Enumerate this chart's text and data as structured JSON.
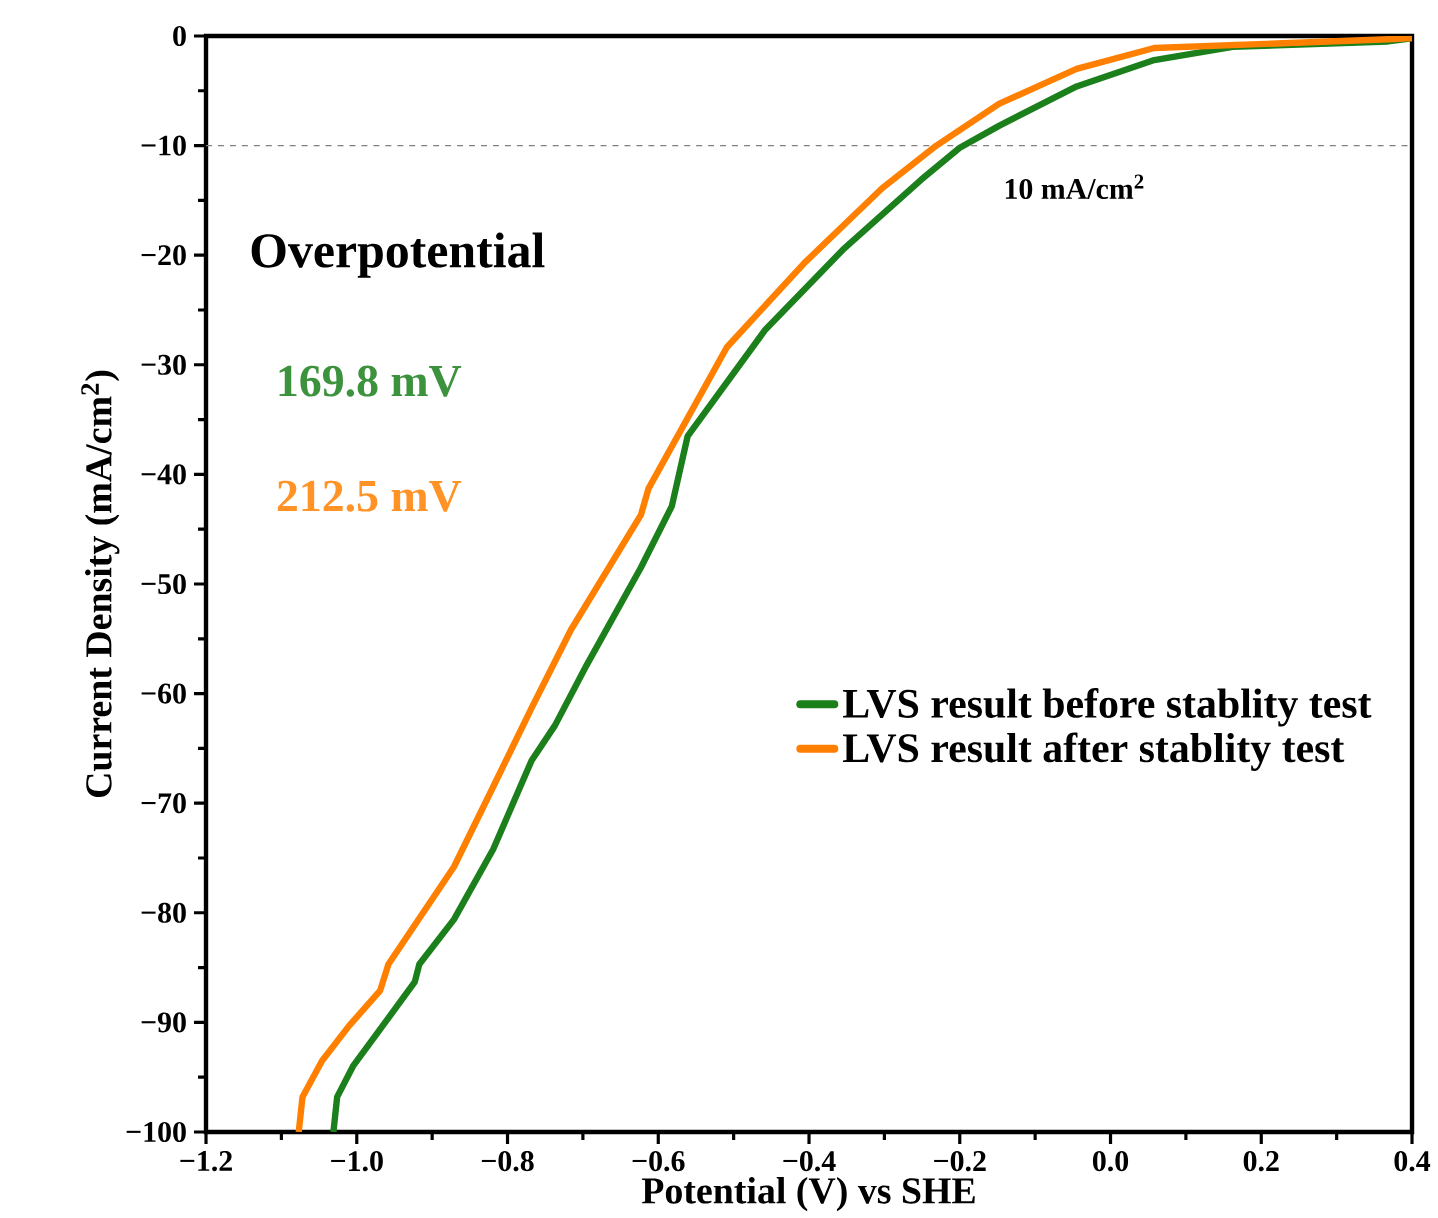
{
  "chart_data": {
    "type": "line",
    "xlabel": "Potential (V) vs SHE",
    "ylabel": "Current Density (mA/cm$^{2}$)",
    "annotations": [
      "Overpotential",
      "169.8 mV",
      "212.5 mV"
    ],
    "series": [
      {
        "name": "LVS result before stablity test",
        "color": "#1b7f1b",
        "x": [
          -1.031,
          -1.026,
          -1.005,
          -0.974,
          -0.923,
          -0.917,
          -0.871,
          -0.819,
          -0.768,
          -0.737,
          -0.695,
          -0.623,
          -0.582,
          -0.561,
          -0.458,
          -0.355,
          -0.251,
          -0.2,
          -0.148,
          -0.045,
          0.058,
          0.162,
          0.368,
          0.4
        ],
        "values": [
          -100,
          -96.8,
          -94,
          -91.1,
          -86.3,
          -84.7,
          -80.6,
          -74.2,
          -66.1,
          -62.9,
          -57.4,
          -48.5,
          -42.9,
          -36.5,
          -26.8,
          -19.5,
          -13.1,
          -10.2,
          -8.2,
          -4.6,
          -2.2,
          -1,
          -0.5,
          -0.2
        ]
      },
      {
        "name": "LVS result after stablity test",
        "color": "#ff8000",
        "x": [
          -1.077,
          -1.072,
          -1.046,
          -1.01,
          -0.969,
          -0.958,
          -0.871,
          -0.819,
          -0.768,
          -0.716,
          -0.623,
          -0.613,
          -0.509,
          -0.406,
          -0.303,
          -0.231,
          -0.148,
          -0.045,
          0.058,
          0.368,
          0.4
        ],
        "values": [
          -100,
          -96.8,
          -93.5,
          -90.3,
          -87.1,
          -84.7,
          -75.8,
          -68.5,
          -61.3,
          -54.2,
          -43.7,
          -41.3,
          -28.4,
          -20.7,
          -13.9,
          -10,
          -6.2,
          -3,
          -1.1,
          -0.3,
          -0.2
        ]
      }
    ],
    "xlim": [
      -1.2,
      0.4
    ],
    "ylim": [
      -100,
      0
    ],
    "xticks": [
      {
        "value": -1.2,
        "label": "−1.2"
      },
      {
        "value": -1.0,
        "label": "−1.0"
      },
      {
        "value": -0.8,
        "label": "−0.8"
      },
      {
        "value": -0.6,
        "label": "−0.6"
      },
      {
        "value": -0.4,
        "label": "−0.4"
      },
      {
        "value": -0.2,
        "label": "−0.2"
      },
      {
        "value": 0.0,
        "label": "0.0"
      },
      0.2,
      0.4
    ],
    "yticks": [
      0,
      {
        "value": -10,
        "label": "−10"
      },
      {
        "value": -20,
        "label": "−20"
      },
      {
        "value": -30,
        "label": "−30"
      },
      {
        "value": -40,
        "label": "−40"
      },
      {
        "value": -50,
        "label": "−50"
      },
      {
        "value": -60,
        "label": "−60"
      },
      {
        "value": -70,
        "label": "−70"
      },
      {
        "value": -80,
        "label": "−80"
      },
      {
        "value": -90,
        "label": "−90"
      },
      {
        "value": -100,
        "label": "−100"
      }
    ],
    "ref_lines": [
      {
        "axis": "y",
        "value": -10,
        "label": "10 mA/cm$^{2}$",
        "color": "#808080",
        "line_style": "dashed"
      }
    ],
    "legend": "right",
    "grid": false,
    "marker": "none",
    "line_style": "solid"
  }
}
